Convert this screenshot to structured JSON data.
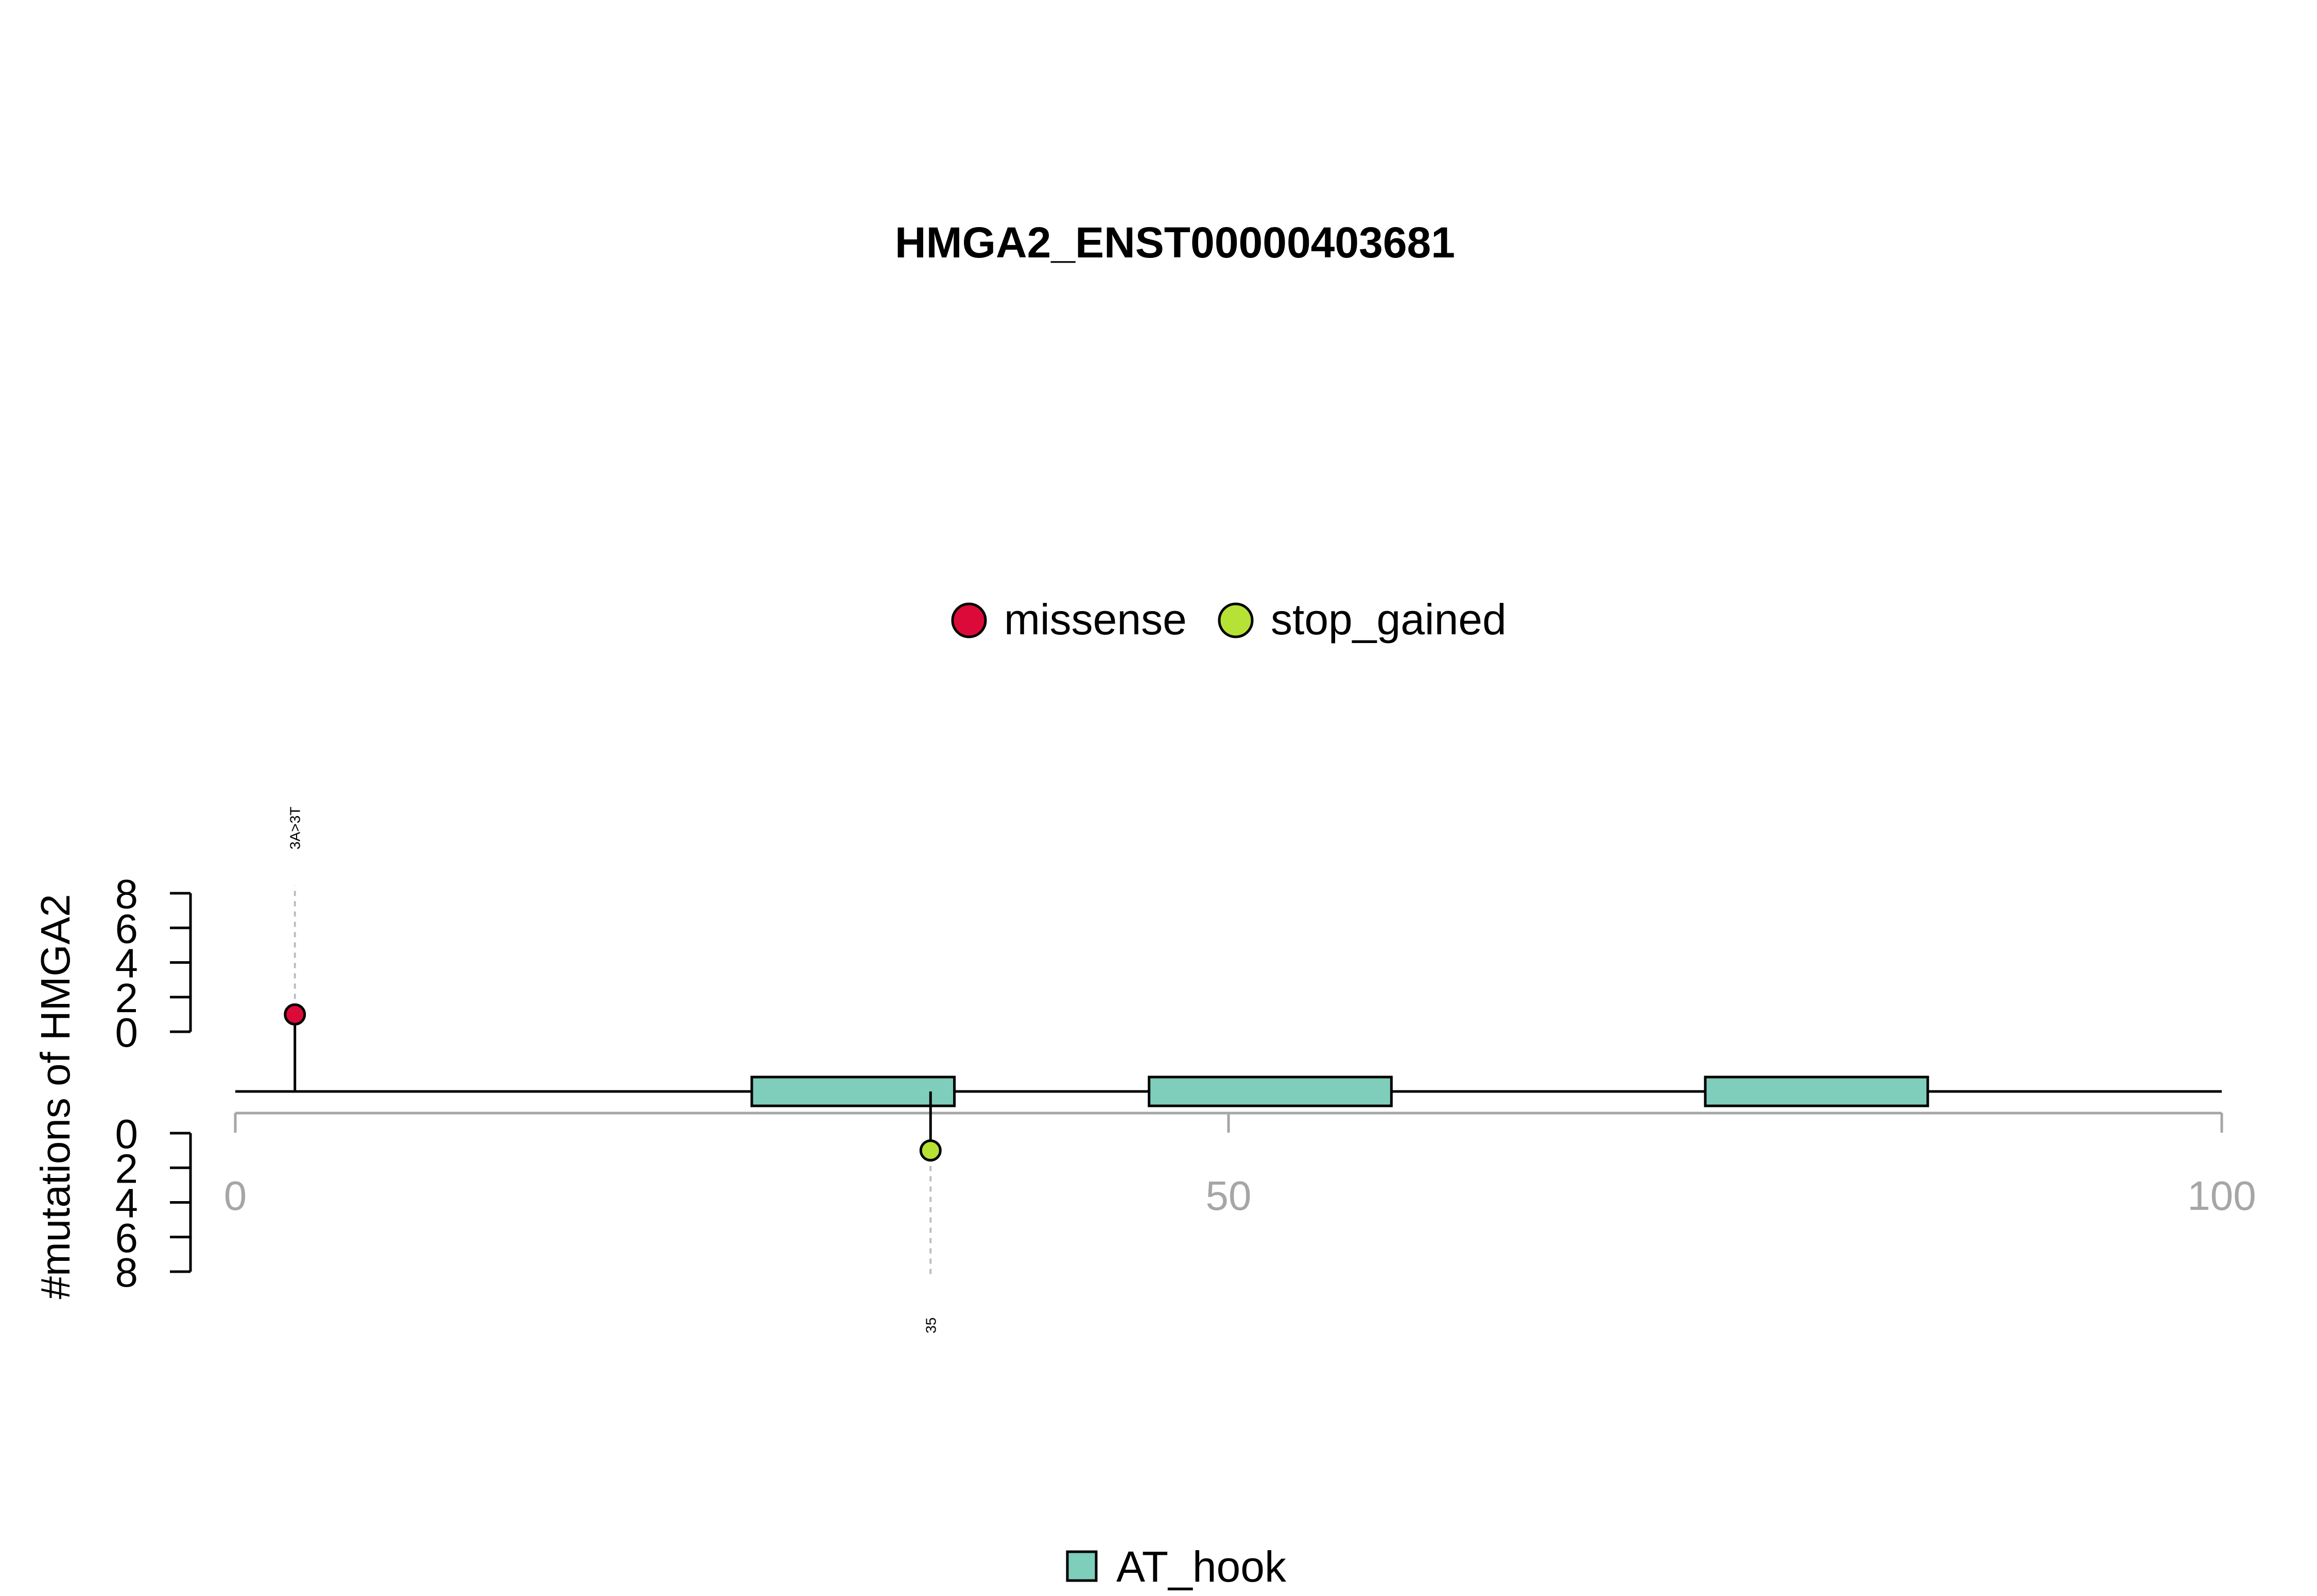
{
  "chart_data": {
    "type": "lollipop",
    "title": "HMGA2_ENST00000403681",
    "ylabel": "#mutations of HMGA2",
    "xlim": [
      0,
      100
    ],
    "x_ticks": [
      "0",
      "50",
      "100"
    ],
    "x_tick_values": [
      0,
      50,
      100
    ],
    "y_ticks": [
      "0",
      "2",
      "4",
      "6",
      "8"
    ],
    "y_tick_values": [
      0,
      2,
      4,
      6,
      8
    ],
    "ylim_top": [
      0,
      8
    ],
    "ylim_bottom": [
      0,
      8
    ],
    "mutation_legend": [
      {
        "label": "missense",
        "color": "#DC0A38"
      },
      {
        "label": "stop_gained",
        "color": "#B5E234"
      }
    ],
    "domain_legend": [
      {
        "label": "AT_hook",
        "color": "#7FCDBB"
      }
    ],
    "domains": [
      {
        "name": "AT_hook",
        "start": 26,
        "end": 36.2
      },
      {
        "name": "AT_hook",
        "start": 46,
        "end": 58.2
      },
      {
        "name": "AT_hook",
        "start": 74,
        "end": 85.2
      }
    ],
    "mutations": [
      {
        "position": 3,
        "count": 1,
        "type": "missense",
        "track": "top",
        "label": "3A>3T",
        "color": "#DC0A38"
      },
      {
        "position": 35,
        "count": 1,
        "type": "stop_gained",
        "track": "bottom",
        "label": "35",
        "color": "#B5E234"
      }
    ]
  }
}
